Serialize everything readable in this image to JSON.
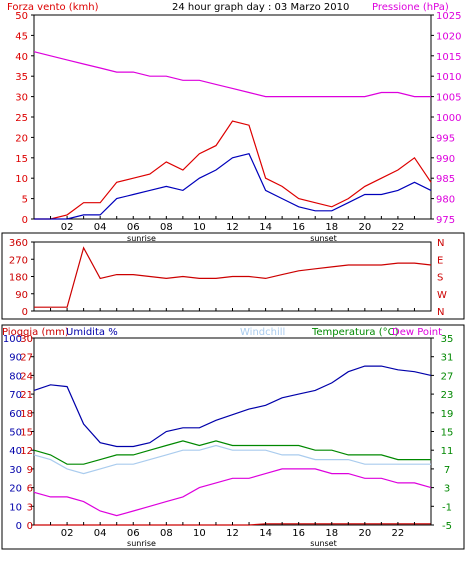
{
  "header": {
    "title": "24 hour graph day : 03 Marzo 2010",
    "left_title": "Forza vento (kmh)",
    "right_title": "Pressione (hPa)"
  },
  "colors": {
    "wind": "#dd0000",
    "wind_avg": "#0000bb",
    "pressure": "#dd00dd",
    "direction": "#cc0000",
    "humidity": "#0000aa",
    "temperature": "#008800",
    "windchill": "#aaccee",
    "dewpoint": "#dd00dd",
    "rain": "#cc0000",
    "frame": "#000000"
  },
  "x_axis": {
    "hour_labels": [
      "02",
      "04",
      "06",
      "08",
      "10",
      "12",
      "14",
      "16",
      "18",
      "20",
      "22"
    ],
    "sunrise": "sunrise",
    "sunset": "sunset"
  },
  "panel_bottom": {
    "rain_label": "Pioggia (mm)",
    "humidity_label": "Umidita %",
    "windchill_label": "Windchill",
    "temperature_label": "Temperatura (°C)",
    "dewpoint_label": "Dew Point"
  },
  "chart_data": [
    {
      "type": "line",
      "title": "24 hour graph day : 03 Marzo 2010",
      "ylabel": "Forza vento (kmh)",
      "ylabel_right": "Pressione (hPa)",
      "x_hours": [
        0,
        1,
        2,
        3,
        4,
        5,
        6,
        7,
        8,
        9,
        10,
        11,
        12,
        13,
        14,
        15,
        16,
        17,
        18,
        19,
        20,
        21,
        22,
        23,
        24
      ],
      "ylim": [
        0,
        50
      ],
      "yticks": [
        0,
        5,
        10,
        15,
        20,
        25,
        30,
        35,
        40,
        45,
        50
      ],
      "ylim_right": [
        975,
        1025
      ],
      "yticks_right": [
        975,
        980,
        985,
        990,
        995,
        1000,
        1005,
        1010,
        1015,
        1020,
        1025
      ],
      "series": [
        {
          "name": "Forza vento (kmh)",
          "axis": "left",
          "color": "#dd0000",
          "values": [
            0,
            0,
            1,
            4,
            4,
            9,
            10,
            11,
            14,
            12,
            16,
            18,
            24,
            23,
            10,
            8,
            5,
            4,
            3,
            5,
            8,
            10,
            12,
            15,
            9
          ]
        },
        {
          "name": "wind_avg",
          "axis": "left",
          "color": "#0000bb",
          "values": [
            0,
            0,
            0,
            1,
            1,
            5,
            6,
            7,
            8,
            7,
            10,
            12,
            15,
            16,
            7,
            5,
            3,
            2,
            2,
            4,
            6,
            6,
            7,
            9,
            7
          ]
        },
        {
          "name": "Pressione (hPa)",
          "axis": "right",
          "color": "#dd00dd",
          "values": [
            1016,
            1015,
            1014,
            1013,
            1012,
            1011,
            1011,
            1010,
            1010,
            1009,
            1009,
            1008,
            1007,
            1006,
            1005,
            1005,
            1005,
            1005,
            1005,
            1005,
            1005,
            1006,
            1006,
            1005,
            1005
          ]
        }
      ]
    },
    {
      "type": "line",
      "ylim": [
        0,
        360
      ],
      "yticks": [
        0,
        90,
        180,
        270,
        360
      ],
      "right_labels": [
        "N",
        "W",
        "S",
        "E",
        "N"
      ],
      "series": [
        {
          "name": "direction",
          "color": "#cc0000",
          "values": [
            20,
            20,
            20,
            330,
            170,
            190,
            190,
            180,
            170,
            180,
            170,
            170,
            180,
            180,
            170,
            190,
            210,
            220,
            230,
            240,
            240,
            240,
            250,
            250,
            240
          ]
        }
      ]
    },
    {
      "type": "line",
      "ylim": [
        0,
        100
      ],
      "yticks_humidity": [
        0,
        10,
        20,
        30,
        40,
        50,
        60,
        70,
        80,
        90,
        100
      ],
      "yticks_rain": [
        0,
        3,
        6,
        9,
        12,
        15,
        18,
        21,
        24,
        27,
        30
      ],
      "yticks_temp": [
        -5,
        -1,
        3,
        7,
        11,
        15,
        19,
        23,
        27,
        31,
        35
      ],
      "ylim_temp": [
        -5,
        35
      ],
      "series": [
        {
          "name": "Umidita %",
          "color": "#0000aa",
          "values": [
            72,
            75,
            74,
            54,
            44,
            42,
            42,
            44,
            50,
            52,
            52,
            56,
            59,
            62,
            64,
            68,
            70,
            72,
            76,
            82,
            85,
            85,
            83,
            82,
            80
          ]
        },
        {
          "name": "Temperatura (°C)",
          "color": "#008800",
          "values": [
            11,
            10,
            8,
            8,
            9,
            10,
            10,
            11,
            12,
            13,
            12,
            13,
            12,
            12,
            12,
            12,
            12,
            11,
            11,
            10,
            10,
            10,
            9,
            9,
            9
          ]
        },
        {
          "name": "Windchill",
          "color": "#aaccee",
          "values": [
            10,
            9,
            7,
            6,
            7,
            8,
            8,
            9,
            10,
            11,
            11,
            12,
            11,
            11,
            11,
            10,
            10,
            9,
            9,
            9,
            8,
            8,
            8,
            8,
            8
          ]
        },
        {
          "name": "Dew Point",
          "color": "#dd00dd",
          "values": [
            2,
            1,
            1,
            0,
            -2,
            -3,
            -2,
            -1,
            0,
            1,
            3,
            4,
            5,
            5,
            6,
            7,
            7,
            7,
            6,
            6,
            5,
            5,
            4,
            4,
            3
          ]
        },
        {
          "name": "Pioggia (mm)",
          "color": "#cc0000",
          "values": [
            0,
            0,
            0,
            0,
            0,
            0,
            0,
            0,
            0,
            0,
            0,
            0,
            0,
            0,
            0.2,
            0.2,
            0.2,
            0.2,
            0.2,
            0.2,
            0.2,
            0.2,
            0.2,
            0.2,
            0.2
          ]
        }
      ]
    }
  ]
}
